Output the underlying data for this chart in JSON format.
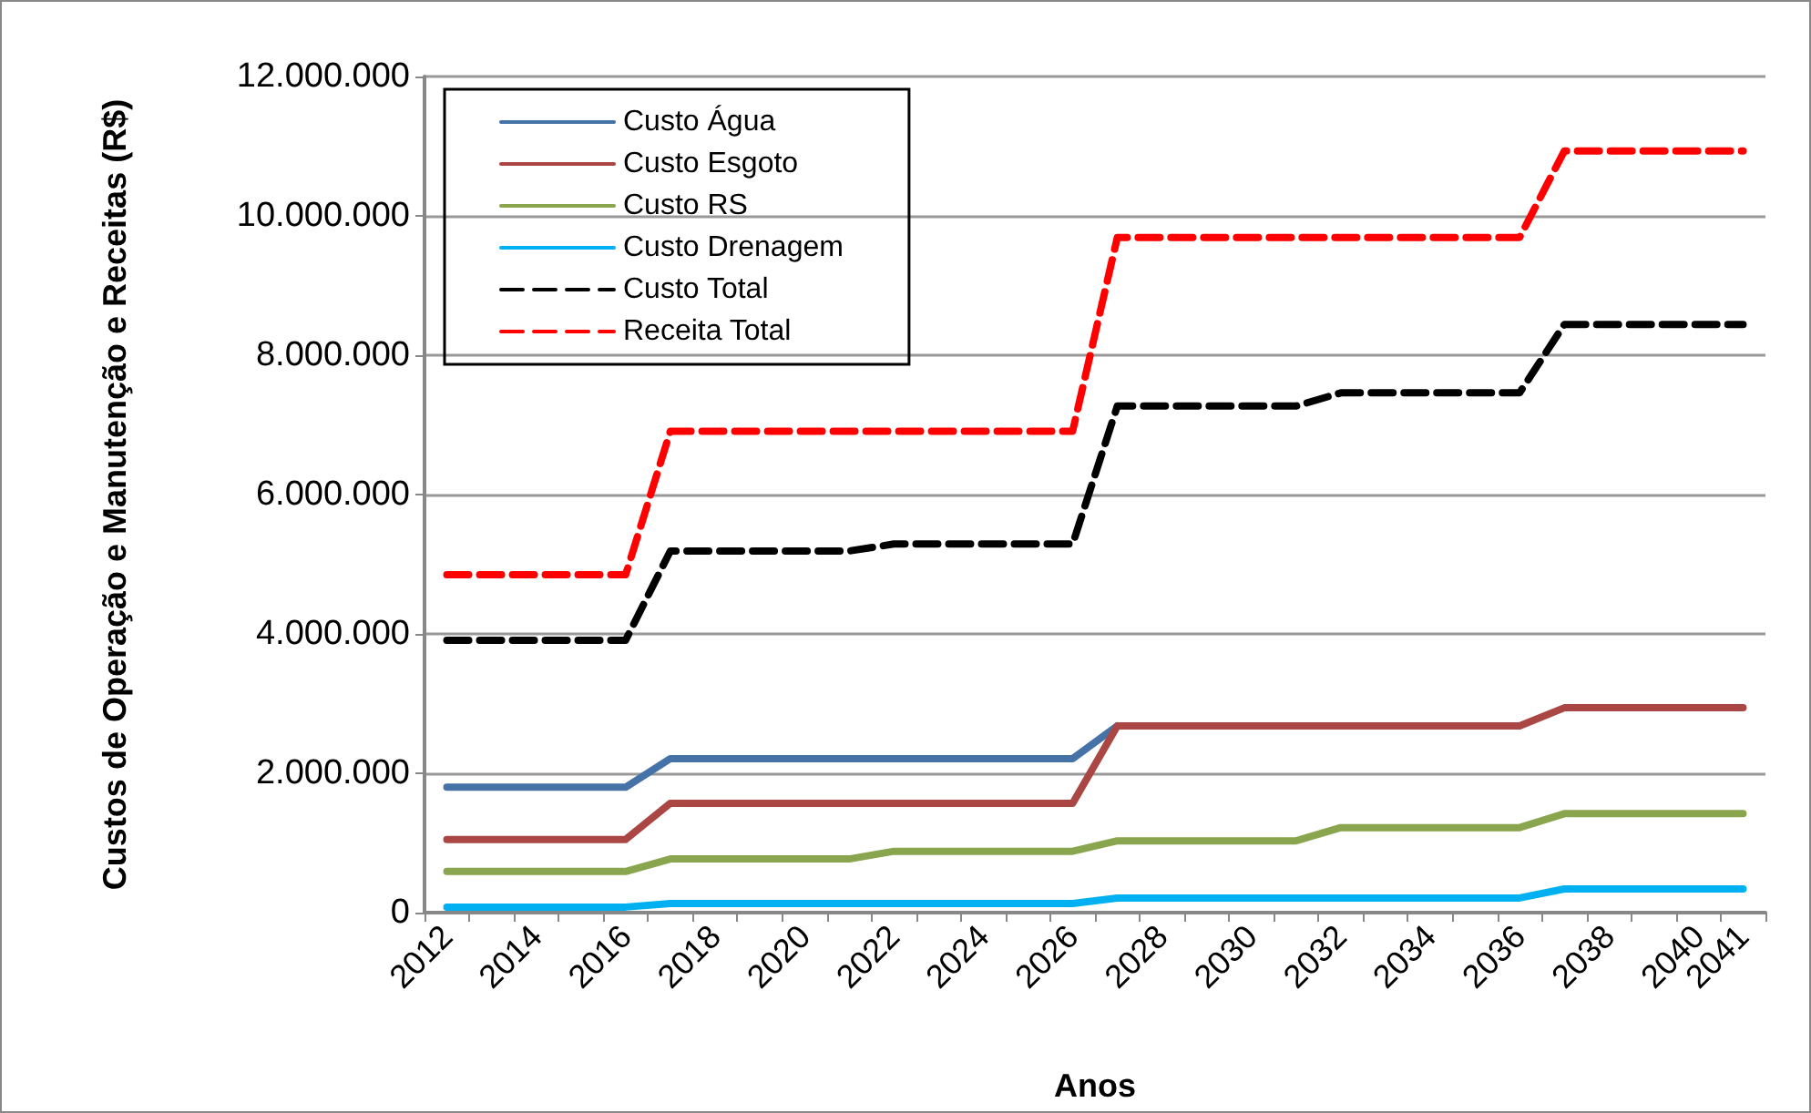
{
  "chart_data": {
    "type": "line",
    "xlabel": "Anos",
    "ylabel": "Custos de Operação e Manutenção e Receitas (R$)",
    "categories": [
      "2012",
      null,
      "2014",
      null,
      "2016",
      null,
      "2018",
      null,
      "2020",
      null,
      "2022",
      null,
      "2024",
      null,
      "2026",
      null,
      "2028",
      null,
      "2030",
      null,
      "2032",
      null,
      "2034",
      null,
      "2036",
      null,
      "2038",
      null,
      "2040",
      "2041"
    ],
    "ylim": [
      0,
      12000000
    ],
    "yticks": [
      {
        "value": 0,
        "label": "0"
      },
      {
        "value": 2000000,
        "label": "2.000.000"
      },
      {
        "value": 4000000,
        "label": "4.000.000"
      },
      {
        "value": 6000000,
        "label": "6.000.000"
      },
      {
        "value": 8000000,
        "label": "8.000.000"
      },
      {
        "value": 10000000,
        "label": "10.000.000"
      },
      {
        "value": 12000000,
        "label": "12.000.000"
      }
    ],
    "grid": "y",
    "legend": "top left",
    "marker": "none",
    "series": [
      {
        "name": "Custo Água",
        "color": "#4572a7",
        "line_style": "solid",
        "values": [
          1800000,
          1800000,
          1800000,
          1800000,
          1800000,
          2210000,
          2210000,
          2210000,
          2210000,
          2210000,
          2210000,
          2210000,
          2210000,
          2210000,
          2210000,
          2680000,
          null,
          null,
          null,
          null,
          null,
          null,
          null,
          null,
          null,
          null,
          null,
          null,
          null,
          null
        ]
      },
      {
        "name": "Custo Esgoto",
        "color": "#aa4643",
        "line_style": "solid",
        "values": [
          1050000,
          1050000,
          1050000,
          1050000,
          1050000,
          1570000,
          1570000,
          1570000,
          1570000,
          1570000,
          1570000,
          1570000,
          1570000,
          1570000,
          1570000,
          2680000,
          2680000,
          2680000,
          2680000,
          2680000,
          2680000,
          2680000,
          2680000,
          2680000,
          2680000,
          2940000,
          2940000,
          2940000,
          2940000,
          2940000
        ]
      },
      {
        "name": "Custo RS",
        "color": "#89a54e",
        "line_style": "solid",
        "values": [
          590000,
          590000,
          590000,
          590000,
          590000,
          770000,
          770000,
          770000,
          770000,
          770000,
          880000,
          880000,
          880000,
          880000,
          880000,
          1030000,
          1030000,
          1030000,
          1030000,
          1030000,
          1220000,
          1220000,
          1220000,
          1220000,
          1220000,
          1420000,
          1420000,
          1420000,
          1420000,
          1420000
        ]
      },
      {
        "name": "Custo Drenagem",
        "color": "#00b0f0",
        "line_style": "solid",
        "values": [
          80000,
          80000,
          80000,
          80000,
          80000,
          130000,
          130000,
          130000,
          130000,
          130000,
          130000,
          130000,
          130000,
          130000,
          130000,
          210000,
          210000,
          210000,
          210000,
          210000,
          210000,
          210000,
          210000,
          210000,
          210000,
          340000,
          340000,
          340000,
          340000,
          340000
        ]
      },
      {
        "name": "Custo Total",
        "color": "#000000",
        "line_style": "dashed",
        "values": [
          3910000,
          3910000,
          3910000,
          3910000,
          3910000,
          5190000,
          5190000,
          5190000,
          5190000,
          5190000,
          5290000,
          5290000,
          5290000,
          5290000,
          5290000,
          7270000,
          7270000,
          7270000,
          7270000,
          7270000,
          7460000,
          7460000,
          7460000,
          7460000,
          7460000,
          8440000,
          8440000,
          8440000,
          8440000,
          8440000
        ]
      },
      {
        "name": "Receita Total",
        "color": "#ff0000",
        "line_style": "dashed",
        "values": [
          4850000,
          4850000,
          4850000,
          4850000,
          4850000,
          6910000,
          6910000,
          6910000,
          6910000,
          6910000,
          6910000,
          6910000,
          6910000,
          6910000,
          6910000,
          9690000,
          9690000,
          9690000,
          9690000,
          9690000,
          9690000,
          9690000,
          9690000,
          9690000,
          9690000,
          10930000,
          10930000,
          10930000,
          10930000,
          10930000
        ]
      }
    ]
  }
}
